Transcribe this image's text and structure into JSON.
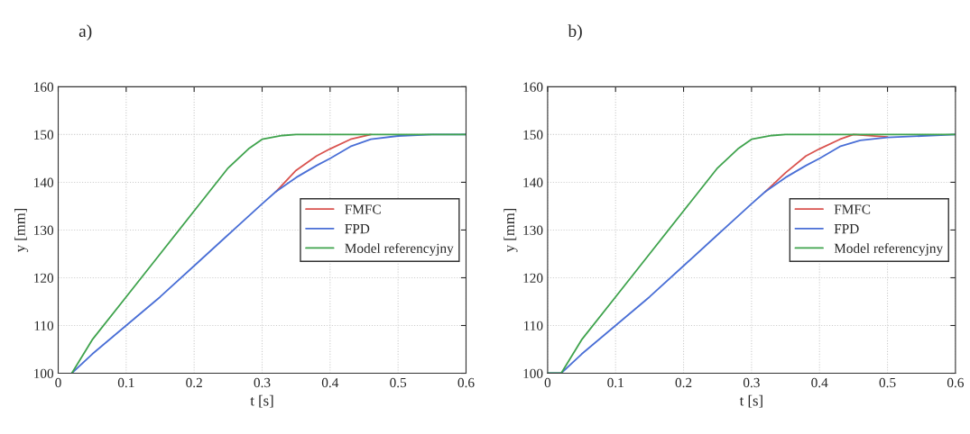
{
  "chart_data": [
    {
      "type": "line",
      "title": "a)",
      "xlabel": "t [s]",
      "ylabel": "y [mm]",
      "xlim": [
        0,
        0.6
      ],
      "ylim": [
        100,
        160
      ],
      "xticks": [
        0,
        0.1,
        0.2,
        0.3,
        0.4,
        0.5,
        0.6
      ],
      "yticks": [
        100,
        110,
        120,
        130,
        140,
        150,
        160
      ],
      "grid": true,
      "legend": "right",
      "series": [
        {
          "name": "FMFC",
          "color": "#d9534f",
          "x": [
            0.32,
            0.35,
            0.38,
            0.4,
            0.43,
            0.46
          ],
          "values": [
            138,
            142.5,
            145.5,
            147,
            149,
            150
          ]
        },
        {
          "name": "FPD",
          "color": "#4a6fd6",
          "x": [
            0.02,
            0.05,
            0.1,
            0.15,
            0.2,
            0.25,
            0.3,
            0.32,
            0.35,
            0.38,
            0.4,
            0.43,
            0.46,
            0.5,
            0.55,
            0.6
          ],
          "values": [
            100,
            104,
            110,
            116,
            122.5,
            129,
            135.5,
            138,
            141,
            143.5,
            145,
            147.5,
            149,
            149.7,
            150,
            150
          ]
        },
        {
          "name": "Model referencyjny",
          "color": "#3fa34d",
          "x": [
            0.02,
            0.05,
            0.1,
            0.15,
            0.2,
            0.25,
            0.28,
            0.3,
            0.33,
            0.35,
            0.6
          ],
          "values": [
            100,
            107,
            116,
            125,
            134,
            143,
            147,
            149,
            149.8,
            150,
            150
          ]
        }
      ]
    },
    {
      "type": "line",
      "title": "b)",
      "xlabel": "t [s]",
      "ylabel": "y [mm]",
      "xlim": [
        0,
        0.6
      ],
      "ylim": [
        100,
        160
      ],
      "xticks": [
        0,
        0.1,
        0.2,
        0.3,
        0.4,
        0.5,
        0.6
      ],
      "yticks": [
        100,
        110,
        120,
        130,
        140,
        150,
        160
      ],
      "grid": true,
      "legend": "right",
      "series": [
        {
          "name": "FMFC",
          "color": "#d9534f",
          "x": [
            0.32,
            0.35,
            0.38,
            0.4,
            0.43,
            0.45,
            0.5
          ],
          "values": [
            138,
            142,
            145.5,
            147,
            149,
            150,
            149.5
          ]
        },
        {
          "name": "FPD",
          "color": "#4a6fd6",
          "x": [
            0,
            0.02,
            0.05,
            0.1,
            0.15,
            0.2,
            0.25,
            0.3,
            0.32,
            0.35,
            0.38,
            0.4,
            0.43,
            0.46,
            0.5,
            0.55,
            0.6
          ],
          "values": [
            100,
            100,
            104,
            110,
            116,
            122.5,
            129,
            135.5,
            138,
            141,
            143.5,
            145,
            147.5,
            148.8,
            149.4,
            149.7,
            150
          ]
        },
        {
          "name": "Model referencyjny",
          "color": "#3fa34d",
          "x": [
            0,
            0.02,
            0.05,
            0.1,
            0.15,
            0.2,
            0.25,
            0.28,
            0.3,
            0.33,
            0.35,
            0.6
          ],
          "values": [
            100,
            100,
            107,
            116,
            125,
            134,
            143,
            147,
            149,
            149.8,
            150,
            150
          ]
        }
      ]
    }
  ]
}
